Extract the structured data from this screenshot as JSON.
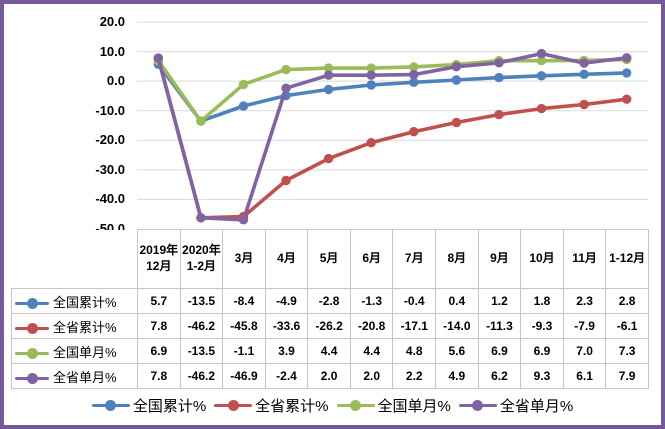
{
  "chart_data": {
    "type": "line",
    "title": "",
    "xlabel": "",
    "ylabel": "",
    "categories": [
      "2019年12月",
      "2020年1-2月",
      "3月",
      "4月",
      "5月",
      "6月",
      "7月",
      "8月",
      "9月",
      "10月",
      "11月",
      "1-12月"
    ],
    "series": [
      {
        "name": "全国累计%",
        "color": "#4F81BD",
        "values": [
          5.7,
          -13.5,
          -8.4,
          -4.9,
          -2.8,
          -1.3,
          -0.4,
          0.4,
          1.2,
          1.8,
          2.3,
          2.8
        ]
      },
      {
        "name": "全省累计%",
        "color": "#C0504D",
        "values": [
          7.8,
          -46.2,
          -45.8,
          -33.6,
          -26.2,
          -20.8,
          -17.1,
          -14.0,
          -11.3,
          -9.3,
          -7.9,
          -6.1
        ]
      },
      {
        "name": "全国单月%",
        "color": "#9BBB59",
        "values": [
          6.9,
          -13.5,
          -1.1,
          3.9,
          4.4,
          4.4,
          4.8,
          5.6,
          6.9,
          6.9,
          7.0,
          7.3
        ]
      },
      {
        "name": "全省单月%",
        "color": "#8064A2",
        "values": [
          7.8,
          -46.2,
          -46.9,
          -2.4,
          2.0,
          2.0,
          2.2,
          4.9,
          6.2,
          9.3,
          6.1,
          7.9
        ]
      }
    ],
    "ylim": [
      -50,
      20
    ],
    "yticks": [
      20,
      10,
      0,
      -10,
      -20,
      -30,
      -40,
      -50
    ],
    "ytick_labels": [
      "20.0",
      "10.0",
      "0.0",
      "-10.0",
      "-20.0",
      "-30.0",
      "-40.0",
      "-50.0"
    ],
    "grid": true,
    "legend_position": "bottom"
  },
  "table": {
    "headers": [
      "2019年12月",
      "2020年1-2月",
      "3月",
      "4月",
      "5月",
      "6月",
      "7月",
      "8月",
      "9月",
      "10月",
      "11月",
      "1-12月"
    ],
    "rows": [
      {
        "label": "全国累计%",
        "color": "#4F81BD",
        "values": [
          "5.7",
          "-13.5",
          "-8.4",
          "-4.9",
          "-2.8",
          "-1.3",
          "-0.4",
          "0.4",
          "1.2",
          "1.8",
          "2.3",
          "2.8"
        ]
      },
      {
        "label": "全省累计%",
        "color": "#C0504D",
        "values": [
          "7.8",
          "-46.2",
          "-45.8",
          "-33.6",
          "-26.2",
          "-20.8",
          "-17.1",
          "-14.0",
          "-11.3",
          "-9.3",
          "-7.9",
          "-6.1"
        ]
      },
      {
        "label": "全国单月%",
        "color": "#9BBB59",
        "values": [
          "6.9",
          "-13.5",
          "-1.1",
          "3.9",
          "4.4",
          "4.4",
          "4.8",
          "5.6",
          "6.9",
          "6.9",
          "7.0",
          "7.3"
        ]
      },
      {
        "label": "全省单月%",
        "color": "#8064A2",
        "values": [
          "7.8",
          "-46.2",
          "-46.9",
          "-2.4",
          "2.0",
          "2.0",
          "2.2",
          "4.9",
          "6.2",
          "9.3",
          "6.1",
          "7.9"
        ]
      }
    ]
  },
  "legend": {
    "items": [
      {
        "label": "全国累计%",
        "color": "#4F81BD"
      },
      {
        "label": "全省累计%",
        "color": "#C0504D"
      },
      {
        "label": "全国单月%",
        "color": "#9BBB59"
      },
      {
        "label": "全省单月%",
        "color": "#8064A2"
      }
    ]
  },
  "colors": {
    "panel_border": "#75599C",
    "gridline": "#D9D9D9",
    "table_border": "#C6C6C6",
    "text": "#000000"
  }
}
